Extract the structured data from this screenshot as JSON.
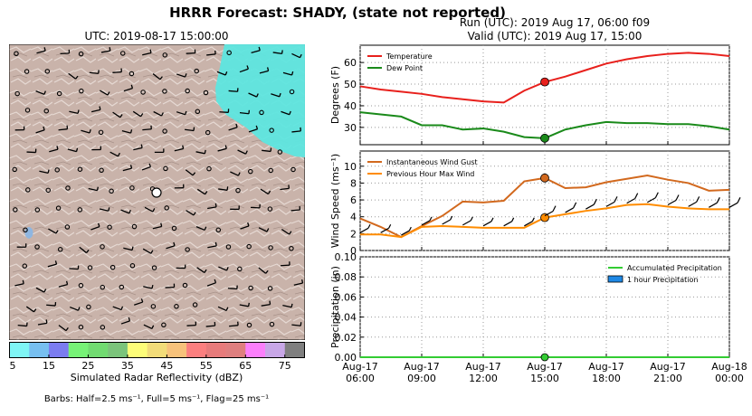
{
  "figure": {
    "suptitle": "HRRR Forecast: SHADY, (state not reported)",
    "run_line": "Run (UTC): 2019 Aug 17, 06:00 f09",
    "valid_line": "Valid (UTC): 2019 Aug 17, 15:00"
  },
  "map": {
    "title": "UTC: 2019-08-17 15:00:00",
    "terrain_color": "#c9b3aa",
    "radar_color": "#5ee6df"
  },
  "colorbar": {
    "label": "Simulated Radar Reflectivity (dBZ)",
    "colors": [
      "#7ff5f5",
      "#77bff0",
      "#7b7cf0",
      "#77f277",
      "#71db71",
      "#7bc47b",
      "#fdfd79",
      "#f2dc79",
      "#f7c27b",
      "#fb7f7f",
      "#e77b7b",
      "#df7f7f",
      "#fb7ffb",
      "#c8a7e7",
      "#7f7f7f"
    ],
    "ticks": [
      "5",
      "15",
      "25",
      "35",
      "45",
      "55",
      "65",
      "75"
    ]
  },
  "barbs_note": "Barbs: Half=2.5 ms⁻¹, Full=5 ms⁻¹, Flag=25 ms⁻¹",
  "chart_data": [
    {
      "type": "line",
      "ylabel": "Degrees (F)",
      "ylim": [
        22,
        68
      ],
      "yticks": [
        30,
        40,
        50,
        60
      ],
      "legend_position": "top-left",
      "x_hours": [
        6,
        7,
        8,
        9,
        10,
        11,
        12,
        13,
        14,
        15,
        16,
        17,
        18,
        19,
        20,
        21,
        22,
        23,
        24
      ],
      "series": [
        {
          "name": "Temperature",
          "color": "#e8201c",
          "values": [
            49,
            47.5,
            46.5,
            45.5,
            44,
            43,
            42,
            41.5,
            47,
            51,
            53.5,
            56.5,
            59.5,
            61.5,
            63,
            64,
            64.5,
            64,
            63
          ]
        },
        {
          "name": "Dew Point",
          "color": "#1a8a1a",
          "values": [
            37,
            36,
            35,
            31,
            31,
            29,
            29.5,
            28,
            25.5,
            25,
            29,
            31,
            32.5,
            32,
            32,
            31.5,
            31.5,
            30.5,
            29
          ]
        }
      ],
      "marker_hour": 15
    },
    {
      "type": "line",
      "ylabel": "Wind Speed (ms⁻¹)",
      "ylim": [
        0,
        11.8
      ],
      "yticks": [
        0,
        2,
        4,
        6,
        8,
        10
      ],
      "legend_position": "top-left",
      "x_hours": [
        6,
        7,
        8,
        9,
        10,
        11,
        12,
        13,
        14,
        15,
        16,
        17,
        18,
        19,
        20,
        21,
        22,
        23,
        24
      ],
      "series": [
        {
          "name": "Instantaneous Wind Gust",
          "color": "#d2691e",
          "values": [
            3.8,
            2.8,
            1.6,
            2.9,
            4.1,
            5.8,
            5.7,
            5.9,
            8.2,
            8.6,
            7.4,
            7.5,
            8.1,
            8.5,
            8.9,
            8.4,
            8.0,
            7.1,
            7.2
          ]
        },
        {
          "name": "Previous Hour Max Wind",
          "color": "#ff8c00",
          "values": [
            1.9,
            1.9,
            1.6,
            2.8,
            2.9,
            2.8,
            2.7,
            2.7,
            2.7,
            3.9,
            4.3,
            4.7,
            5.0,
            5.4,
            5.5,
            5.2,
            5.0,
            4.9,
            4.9
          ]
        }
      ],
      "marker_hour": 15
    },
    {
      "type": "bar",
      "ylabel": "Precipitation (in)",
      "ylim": [
        0,
        0.1
      ],
      "yticks": [
        "0.00",
        "0.02",
        "0.04",
        "0.06",
        "0.08",
        "0.10"
      ],
      "legend_position": "top-right",
      "x_hours": [
        6,
        7,
        8,
        9,
        10,
        11,
        12,
        13,
        14,
        15,
        16,
        17,
        18,
        19,
        20,
        21,
        22,
        23,
        24
      ],
      "series": [
        {
          "name": "Accumulated Precipitation",
          "color": "#33cc33",
          "values": [
            0,
            0,
            0,
            0,
            0,
            0,
            0,
            0,
            0,
            0,
            0,
            0,
            0,
            0,
            0,
            0,
            0,
            0,
            0
          ]
        },
        {
          "name": "1 hour Precipitation",
          "color": "#1e88e5",
          "values": [
            0,
            0,
            0,
            0,
            0,
            0,
            0,
            0,
            0,
            0,
            0,
            0,
            0,
            0,
            0,
            0,
            0,
            0,
            0
          ]
        }
      ],
      "marker_hour": 15,
      "xtick_labels": [
        [
          "Aug-17",
          "06:00"
        ],
        [
          "Aug-17",
          "09:00"
        ],
        [
          "Aug-17",
          "12:00"
        ],
        [
          "Aug-17",
          "15:00"
        ],
        [
          "Aug-17",
          "18:00"
        ],
        [
          "Aug-17",
          "21:00"
        ],
        [
          "Aug-18",
          "00:00"
        ]
      ]
    }
  ]
}
